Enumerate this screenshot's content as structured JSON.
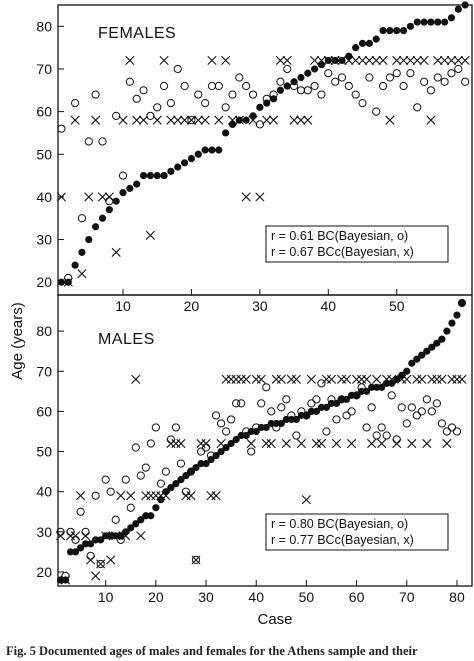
{
  "caption": "Fig. 5 Documented ages of males and females for the Athens sample and their",
  "chart_data": [
    {
      "type": "scatter",
      "title": "FEMALES",
      "ylabel": "Age (years)",
      "xlim": [
        0.5,
        61
      ],
      "ylim": [
        17,
        85
      ],
      "xticks": [
        10,
        20,
        30,
        40,
        50
      ],
      "yticks": [
        20,
        30,
        40,
        50,
        60,
        70,
        80
      ],
      "legend": [
        "r = 0.61 BC(Bayesian, o)",
        "r = 0.67 BCc(Bayesian, x)"
      ],
      "legend_position": "bottom-right",
      "series": [
        {
          "marker": "filled-circle",
          "x": [
            1,
            2,
            3,
            4,
            5,
            6,
            7,
            8,
            9,
            10,
            11,
            12,
            13,
            14,
            15,
            16,
            17,
            18,
            19,
            20,
            21,
            22,
            23,
            24,
            25,
            26,
            27,
            28,
            29,
            30,
            31,
            32,
            33,
            34,
            35,
            36,
            37,
            38,
            39,
            40,
            41,
            42,
            43,
            44,
            45,
            46,
            47,
            48,
            49,
            50,
            51,
            52,
            53,
            54,
            55,
            56,
            57,
            58,
            59,
            60
          ],
          "y": [
            20,
            20,
            24,
            27,
            30,
            33,
            35,
            37,
            39,
            41,
            42,
            43,
            45,
            45,
            45,
            45,
            46,
            47,
            48,
            49,
            50,
            51,
            51,
            51,
            55,
            57,
            58,
            58,
            59,
            61,
            62,
            63,
            65,
            66,
            67,
            68,
            69,
            70,
            71,
            72,
            72,
            72,
            73,
            75,
            76,
            76,
            77,
            79,
            79,
            79,
            79,
            80,
            81,
            81,
            81,
            81,
            81,
            82,
            84,
            85
          ]
        },
        {
          "marker": "open-circle",
          "x": [
            1,
            2,
            3,
            4,
            5,
            6,
            7,
            8,
            9,
            10,
            11,
            12,
            13,
            14,
            15,
            16,
            17,
            18,
            19,
            20,
            21,
            22,
            23,
            24,
            25,
            26,
            27,
            28,
            29,
            30,
            31,
            32,
            33,
            34,
            35,
            36,
            37,
            38,
            39,
            40,
            41,
            42,
            43,
            44,
            45,
            46,
            47,
            48,
            49,
            50,
            51,
            52,
            53,
            54,
            55,
            56,
            57,
            58,
            59,
            60
          ],
          "y": [
            56,
            21,
            62,
            35,
            53,
            64,
            53,
            39,
            59,
            45,
            67,
            63,
            65,
            59,
            61,
            66,
            62,
            70,
            66,
            58,
            64,
            62,
            66,
            66,
            61,
            64,
            68,
            66,
            64,
            57,
            63,
            64,
            67,
            70,
            66,
            65,
            65,
            66,
            64,
            69,
            67,
            68,
            66,
            64,
            62,
            68,
            60,
            66,
            68,
            69,
            66,
            69,
            61,
            67,
            65,
            68,
            67,
            69,
            70,
            67
          ]
        },
        {
          "marker": "x",
          "x": [
            1,
            2,
            3,
            4,
            5,
            6,
            7,
            8,
            9,
            10,
            11,
            12,
            13,
            14,
            15,
            16,
            17,
            18,
            19,
            20,
            21,
            22,
            23,
            24,
            25,
            26,
            27,
            28,
            29,
            30,
            31,
            32,
            33,
            34,
            35,
            36,
            37,
            38,
            39,
            40,
            41,
            42,
            43,
            44,
            45,
            46,
            47,
            48,
            49,
            50,
            51,
            52,
            53,
            54,
            55,
            56,
            57,
            58,
            59,
            60
          ],
          "y": [
            40,
            20,
            58,
            22,
            40,
            58,
            40,
            40,
            27,
            58,
            72,
            58,
            58,
            31,
            58,
            72,
            58,
            58,
            58,
            58,
            58,
            58,
            72,
            58,
            72,
            58,
            58,
            40,
            58,
            40,
            58,
            58,
            72,
            72,
            58,
            58,
            58,
            72,
            72,
            72,
            72,
            72,
            72,
            72,
            72,
            72,
            72,
            72,
            58,
            72,
            72,
            72,
            72,
            72,
            58,
            72,
            72,
            72,
            72,
            72
          ]
        }
      ]
    },
    {
      "type": "scatter",
      "title": "MALES",
      "xlabel": "Case",
      "ylabel": "Age (years)",
      "xlim": [
        0.5,
        83
      ],
      "ylim": [
        16.5,
        89
      ],
      "xticks": [
        10,
        20,
        30,
        40,
        50,
        60,
        70,
        80
      ],
      "yticks": [
        20,
        30,
        40,
        50,
        60,
        70,
        80
      ],
      "legend": [
        "r = 0.80 BC(Bayesian, o)",
        "r = 0.77 BCc(Bayesian, x)"
      ],
      "legend_position": "bottom-right",
      "series": [
        {
          "marker": "filled-circle",
          "x": [
            1,
            2,
            3,
            4,
            5,
            6,
            7,
            8,
            9,
            10,
            11,
            12,
            13,
            14,
            15,
            16,
            17,
            18,
            19,
            20,
            21,
            22,
            23,
            24,
            25,
            26,
            27,
            28,
            29,
            30,
            31,
            32,
            33,
            34,
            35,
            36,
            37,
            38,
            39,
            40,
            41,
            42,
            43,
            44,
            45,
            46,
            47,
            48,
            49,
            50,
            51,
            52,
            53,
            54,
            55,
            56,
            57,
            58,
            59,
            60,
            61,
            62,
            63,
            64,
            65,
            66,
            67,
            68,
            69,
            70,
            71,
            72,
            73,
            74,
            75,
            76,
            77,
            78,
            79,
            80,
            81
          ],
          "y": [
            18,
            18,
            25,
            25,
            26,
            27,
            27,
            28,
            28,
            29,
            29,
            29,
            29,
            30,
            31,
            32,
            33,
            34,
            34,
            36,
            38,
            40,
            41,
            42,
            43,
            44,
            45,
            46,
            47,
            47,
            48,
            49,
            50,
            51,
            52,
            53,
            54,
            54,
            55,
            55,
            56,
            56,
            57,
            57,
            57,
            58,
            58,
            58,
            59,
            59,
            60,
            60,
            61,
            61,
            62,
            62,
            63,
            63,
            64,
            64,
            65,
            65,
            66,
            66,
            66,
            67,
            67,
            68,
            69,
            70,
            72,
            73,
            74,
            75,
            76,
            77,
            78,
            80,
            82,
            84,
            87
          ]
        },
        {
          "marker": "open-circle",
          "x": [
            1,
            2,
            3,
            4,
            5,
            6,
            7,
            8,
            9,
            10,
            11,
            12,
            13,
            14,
            15,
            16,
            17,
            18,
            19,
            20,
            21,
            22,
            23,
            24,
            25,
            26,
            27,
            28,
            29,
            30,
            31,
            32,
            33,
            34,
            35,
            36,
            37,
            38,
            39,
            40,
            41,
            42,
            43,
            44,
            45,
            46,
            47,
            48,
            49,
            50,
            51,
            52,
            53,
            54,
            55,
            56,
            57,
            58,
            59,
            60,
            61,
            62,
            63,
            64,
            65,
            66,
            67,
            68,
            69,
            70,
            71,
            72,
            73,
            74,
            75,
            76,
            77,
            78,
            79,
            80,
            81
          ],
          "y": [
            30,
            19,
            30,
            28,
            35,
            30,
            24,
            39,
            22,
            43,
            40,
            33,
            28,
            43,
            36,
            51,
            44,
            46,
            52,
            56,
            42,
            45,
            53,
            56,
            47,
            40,
            45,
            23,
            50,
            51,
            49,
            59,
            57,
            55,
            58,
            62,
            62,
            55,
            50,
            56,
            62,
            66,
            60,
            56,
            61,
            63,
            59,
            54,
            60,
            59,
            62,
            63,
            67,
            55,
            63,
            58,
            63,
            59,
            60,
            64,
            66,
            56,
            61,
            54,
            56,
            54,
            64,
            53,
            61,
            57,
            61,
            59,
            60,
            63,
            60,
            62,
            57,
            55,
            56,
            55,
            87
          ]
        },
        {
          "marker": "x",
          "x": [
            1,
            2,
            3,
            4,
            5,
            6,
            7,
            8,
            9,
            10,
            11,
            12,
            13,
            14,
            15,
            16,
            17,
            18,
            19,
            20,
            21,
            22,
            23,
            24,
            25,
            26,
            27,
            28,
            29,
            30,
            31,
            32,
            33,
            34,
            35,
            36,
            37,
            38,
            39,
            40,
            41,
            42,
            43,
            44,
            45,
            46,
            47,
            48,
            49,
            50,
            51,
            52,
            53,
            54,
            55,
            56,
            57,
            58,
            59,
            60,
            61,
            62,
            63,
            64,
            65,
            66,
            67,
            68,
            69,
            70,
            71,
            72,
            73,
            74,
            75,
            76,
            77,
            78,
            79,
            80,
            81
          ],
          "y": [
            29,
            18,
            29,
            29,
            39,
            29,
            23,
            19,
            22,
            29,
            23,
            29,
            39,
            29,
            39,
            68,
            29,
            39,
            39,
            39,
            39,
            39,
            52,
            52,
            52,
            39,
            39,
            23,
            52,
            52,
            39,
            39,
            52,
            68,
            68,
            68,
            68,
            68,
            52,
            68,
            68,
            52,
            52,
            68,
            68,
            52,
            68,
            68,
            52,
            38,
            68,
            52,
            52,
            68,
            68,
            52,
            68,
            68,
            52,
            68,
            68,
            68,
            52,
            68,
            52,
            68,
            68,
            52,
            68,
            68,
            52,
            68,
            68,
            52,
            68,
            68,
            68,
            52,
            68,
            68,
            68
          ]
        }
      ]
    }
  ]
}
